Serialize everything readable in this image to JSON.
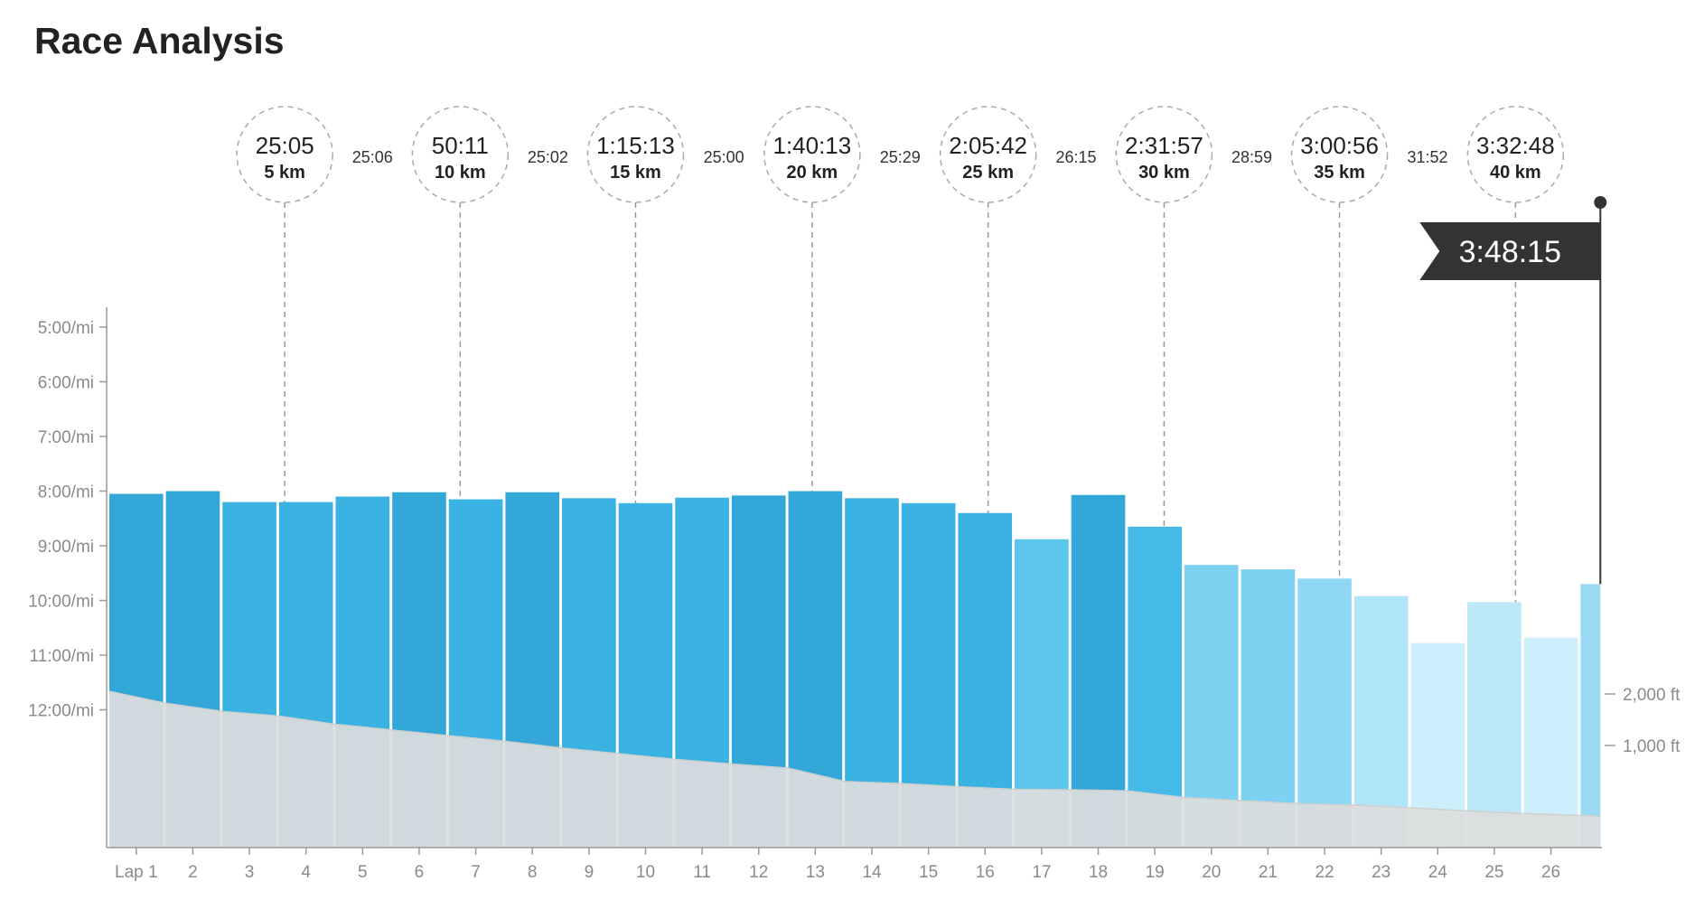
{
  "title": "Race Analysis",
  "chart_data": {
    "type": "bar",
    "title": "Race Analysis",
    "description_units": "pace per mile by lap; elevation area in ft",
    "pace_axis": {
      "ticks": [
        "5:00/mi",
        "6:00/mi",
        "7:00/mi",
        "8:00/mi",
        "9:00/mi",
        "10:00/mi",
        "11:00/mi",
        "12:00/mi"
      ],
      "tick_values_min": [
        5,
        6,
        7,
        8,
        9,
        10,
        11,
        12
      ]
    },
    "elevation_axis": {
      "ticks": [
        "2,000 ft",
        "1,000 ft"
      ],
      "tick_values_ft": [
        2000,
        1000
      ]
    },
    "categories": [
      "Lap 1",
      "2",
      "3",
      "4",
      "5",
      "6",
      "7",
      "8",
      "9",
      "10",
      "11",
      "12",
      "13",
      "14",
      "15",
      "16",
      "17",
      "18",
      "19",
      "20",
      "21",
      "22",
      "23",
      "24",
      "25",
      "26",
      ""
    ],
    "pace_min_per_mi": [
      8.05,
      8.0,
      8.2,
      8.2,
      8.1,
      8.02,
      8.15,
      8.02,
      8.13,
      8.22,
      8.12,
      8.08,
      8.0,
      8.13,
      8.22,
      8.4,
      8.88,
      8.07,
      8.65,
      9.35,
      9.43,
      9.6,
      9.92,
      10.78,
      10.03,
      10.68,
      9.7
    ],
    "bar_colors": [
      "#33a8d8",
      "#33a8d8",
      "#3ab3e2",
      "#3ab3e2",
      "#3ab3e2",
      "#33a8d8",
      "#3ab3e2",
      "#33a8d8",
      "#3ab3e2",
      "#3ab3e2",
      "#3ab3e2",
      "#33a8d8",
      "#33a8d8",
      "#3ab3e2",
      "#3ab3e2",
      "#3ab3e2",
      "#5cc5ec",
      "#33a8d8",
      "#45b9e7",
      "#7dd1f1",
      "#7dd1f1",
      "#8ed8f3",
      "#b0e4f7",
      "#cdeefb",
      "#bde8f8",
      "#cdeefb",
      "#9ad9f3"
    ],
    "elevation_ft": [
      2050,
      1820,
      1660,
      1570,
      1410,
      1300,
      1190,
      1080,
      950,
      840,
      730,
      640,
      560,
      300,
      260,
      200,
      150,
      140,
      120,
      -10,
      -70,
      -130,
      -160,
      -210,
      -270,
      -320,
      -360,
      -370
    ],
    "splits": [
      {
        "time": "25:05",
        "label": "5 km",
        "lap_pos": 3.1
      },
      {
        "time": "50:11",
        "label": "10 km",
        "lap_pos": 6.2
      },
      {
        "time": "1:15:13",
        "label": "15 km",
        "lap_pos": 9.3
      },
      {
        "time": "1:40:13",
        "label": "20 km",
        "lap_pos": 12.42
      },
      {
        "time": "2:05:42",
        "label": "25 km",
        "lap_pos": 15.53
      },
      {
        "time": "2:31:57",
        "label": "30 km",
        "lap_pos": 18.64
      },
      {
        "time": "3:00:56",
        "label": "35 km",
        "lap_pos": 21.74
      },
      {
        "time": "3:32:48",
        "label": "40 km",
        "lap_pos": 24.85
      }
    ],
    "segment_times": [
      "25:06",
      "25:02",
      "25:00",
      "25:29",
      "26:15",
      "28:59",
      "31:52"
    ],
    "finish": {
      "time": "3:48:15",
      "lap_pos": 26.35
    }
  }
}
